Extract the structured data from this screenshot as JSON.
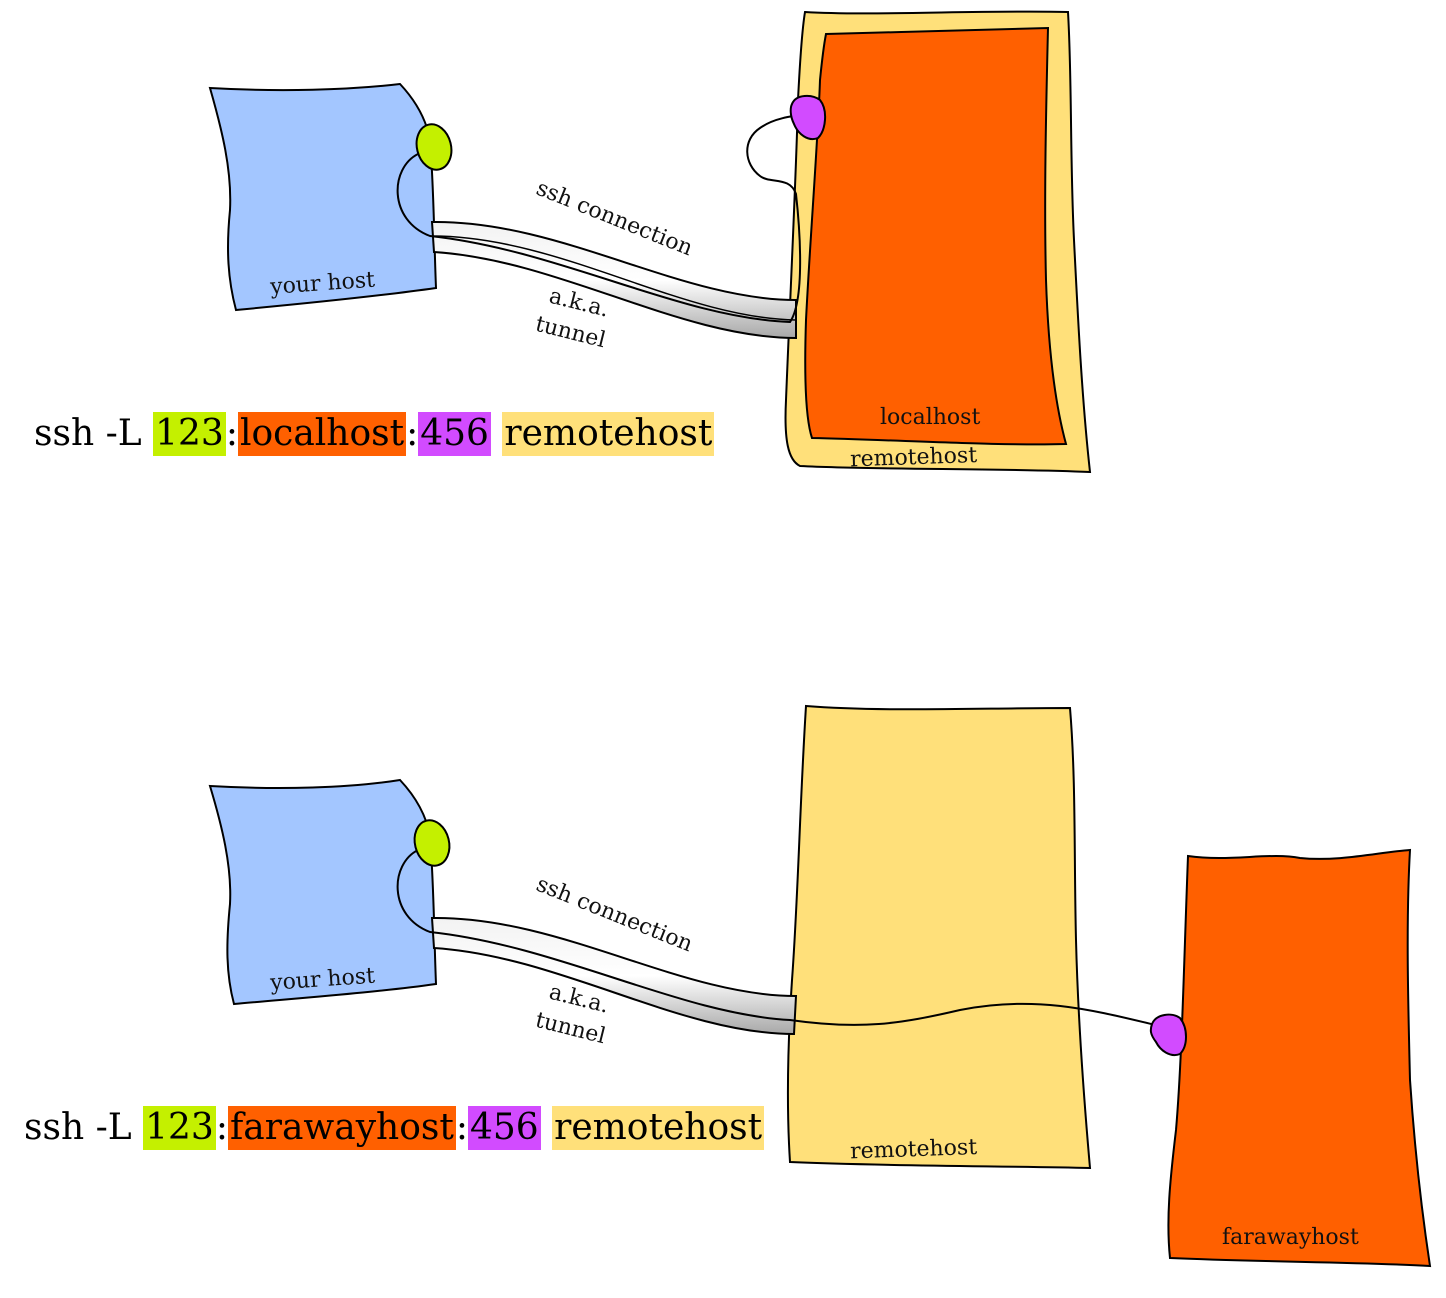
{
  "colors": {
    "your_host": "#a3c6ff",
    "local_port": "#c4f000",
    "target": "#ff6000",
    "remote_port": "#d24bff",
    "remotehost": "#ffe07a",
    "tunnel": "#d8d8d8"
  },
  "top": {
    "your_host_label": "your host",
    "connection_label": "ssh connection",
    "aka_label": "a.k.a.",
    "tunnel_label": "tunnel",
    "inner_host_label": "localhost",
    "remotehost_label": "remotehost",
    "command": {
      "prefix": "ssh -L",
      "local_port": "123",
      "sep1": ":",
      "target_host": "localhost",
      "sep2": ":",
      "remote_port": "456",
      "remote_host": "remotehost"
    }
  },
  "bottom": {
    "your_host_label": "your host",
    "connection_label": "ssh connection",
    "aka_label": "a.k.a.",
    "tunnel_label": "tunnel",
    "remotehost_label": "remotehost",
    "far_host_label": "farawayhost",
    "command": {
      "prefix": "ssh -L",
      "local_port": "123",
      "sep1": ":",
      "target_host": "farawayhost",
      "sep2": ":",
      "remote_port": "456",
      "remote_host": "remotehost"
    }
  }
}
